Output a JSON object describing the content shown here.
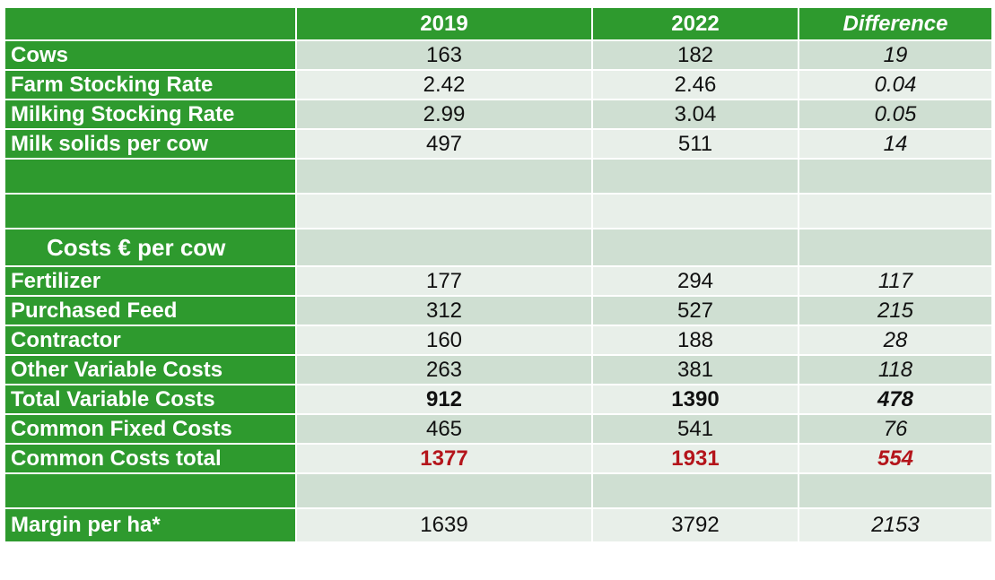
{
  "header": {
    "col_2019": "2019",
    "col_2022": "2022",
    "col_diff": "Difference"
  },
  "colors": {
    "header_green": "#2e9a2e",
    "row_dark": "#cfdfd2",
    "row_light": "#e8efe9",
    "highlight_red": "#b4151b"
  },
  "rows": [
    {
      "label": "Cows",
      "y2019": "163",
      "y2022": "182",
      "diff": "19"
    },
    {
      "label": "Farm Stocking Rate",
      "y2019": "2.42",
      "y2022": "2.46",
      "diff": "0.04"
    },
    {
      "label": "Milking Stocking Rate",
      "y2019": "2.99",
      "y2022": "3.04",
      "diff": "0.05"
    },
    {
      "label": "Milk solids per cow",
      "y2019": "497",
      "y2022": "511",
      "diff": "14"
    }
  ],
  "section_title": "Costs € per cow",
  "cost_rows": [
    {
      "label": "Fertilizer",
      "y2019": "177",
      "y2022": "294",
      "diff": "117"
    },
    {
      "label": "Purchased Feed",
      "y2019": "312",
      "y2022": "527",
      "diff": "215"
    },
    {
      "label": "Contractor",
      "y2019": "160",
      "y2022": "188",
      "diff": "28"
    },
    {
      "label": "Other Variable Costs",
      "y2019": "263",
      "y2022": "381",
      "diff": "118"
    },
    {
      "label": "Total Variable Costs",
      "y2019": "912",
      "y2022": "1390",
      "diff": "478"
    },
    {
      "label": "Common Fixed Costs",
      "y2019": "465",
      "y2022": "541",
      "diff": "76"
    },
    {
      "label": "Common Costs total",
      "y2019": "1377",
      "y2022": "1931",
      "diff": "554"
    }
  ],
  "margin_row": {
    "label": "Margin per ha*",
    "y2019": "1639",
    "y2022": "3792",
    "diff": "2153"
  }
}
